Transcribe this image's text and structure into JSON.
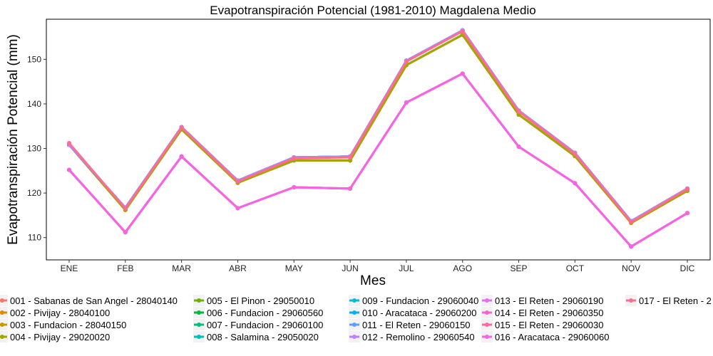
{
  "chart_data": {
    "type": "line",
    "title": "Evapotranspiración Potencial (1981-2010)  Magdalena Medio",
    "xlabel": "Mes",
    "ylabel": "Evapotranspiración Potencial  (mm)",
    "categories": [
      "ENE",
      "FEB",
      "MAR",
      "ABR",
      "MAY",
      "JUN",
      "JUL",
      "AGO",
      "SEP",
      "OCT",
      "NOV",
      "DIC"
    ],
    "ylim": [
      105,
      159
    ],
    "yticks": [
      110,
      120,
      130,
      140,
      150
    ],
    "grid": false,
    "legend_position": "bottom",
    "series": [
      {
        "name": "001 - Sabanas de San Angel - 28040140",
        "color": "#F8766D",
        "values": [
          130.8,
          116.2,
          134.3,
          122.3,
          127.3,
          127.3,
          148.7,
          155.5,
          137.6,
          128.3,
          113.3,
          120.5
        ]
      },
      {
        "name": "002 - Pivijay - 28040100",
        "color": "#E58700",
        "values": [
          130.8,
          116.2,
          134.3,
          122.3,
          127.3,
          127.3,
          148.7,
          155.5,
          137.6,
          128.3,
          113.3,
          120.5
        ]
      },
      {
        "name": "003 - Fundacion - 28040150",
        "color": "#C99800",
        "values": [
          130.8,
          116.2,
          134.3,
          122.3,
          127.3,
          127.3,
          148.7,
          155.5,
          137.6,
          128.3,
          113.3,
          120.5
        ]
      },
      {
        "name": "004 - Pivijay - 29020020",
        "color": "#A3A500",
        "values": [
          130.8,
          116.2,
          134.3,
          122.3,
          127.3,
          127.3,
          148.7,
          155.5,
          137.6,
          128.3,
          113.3,
          120.5
        ]
      },
      {
        "name": "005 - El Pinon - 29050010",
        "color": "#6BB100",
        "values": [
          130.8,
          116.7,
          134.8,
          122.8,
          128.0,
          128.2,
          149.7,
          156.5,
          138.5,
          129.0,
          113.7,
          121.0
        ]
      },
      {
        "name": "006 - Fundacion - 29060560",
        "color": "#00BA38",
        "values": [
          130.8,
          116.7,
          134.8,
          122.8,
          128.0,
          128.2,
          149.7,
          156.5,
          138.5,
          129.0,
          113.7,
          121.0
        ]
      },
      {
        "name": "007 - Fundacion - 29060100",
        "color": "#00BF7D",
        "values": [
          130.8,
          116.7,
          134.8,
          122.8,
          128.0,
          128.2,
          149.7,
          156.5,
          138.5,
          129.0,
          113.7,
          121.0
        ]
      },
      {
        "name": "008 - Salamina - 29050020",
        "color": "#00C0AF",
        "values": [
          130.8,
          116.7,
          134.8,
          122.8,
          128.0,
          128.2,
          149.7,
          156.5,
          138.5,
          129.0,
          113.7,
          121.0
        ]
      },
      {
        "name": "009 - Fundacion - 29060040",
        "color": "#00BCD8",
        "values": [
          130.8,
          116.7,
          134.8,
          122.8,
          128.0,
          128.2,
          149.7,
          156.5,
          138.5,
          129.0,
          113.7,
          121.0
        ]
      },
      {
        "name": "010 - Aracataca - 29060200",
        "color": "#00B0F6",
        "values": [
          130.8,
          116.7,
          134.8,
          122.8,
          128.0,
          128.2,
          149.7,
          156.5,
          138.5,
          129.0,
          113.7,
          121.0
        ]
      },
      {
        "name": "011 - El Reten - 29060150",
        "color": "#619CFF",
        "values": [
          130.8,
          116.7,
          134.8,
          122.8,
          128.0,
          128.2,
          149.7,
          156.5,
          138.5,
          129.0,
          113.7,
          121.0
        ]
      },
      {
        "name": "012 - Remolino - 29060540",
        "color": "#B983FF",
        "values": [
          130.8,
          116.7,
          134.8,
          122.8,
          128.0,
          128.2,
          149.7,
          156.5,
          138.5,
          129.0,
          113.7,
          121.0
        ]
      },
      {
        "name": "013 - El Reten - 29060190",
        "color": "#E76BF3",
        "values": [
          125.2,
          111.2,
          128.2,
          116.6,
          121.3,
          121.0,
          140.3,
          146.8,
          130.4,
          122.2,
          108.0,
          115.5
        ]
      },
      {
        "name": "014 - El Reten - 29060350",
        "color": "#FD61D1",
        "values": [
          125.2,
          111.2,
          128.2,
          116.6,
          121.3,
          121.0,
          140.3,
          146.8,
          130.4,
          122.2,
          108.0,
          115.5
        ]
      },
      {
        "name": "015 - El Reten - 29060030",
        "color": "#FF67A4",
        "values": [
          125.2,
          111.2,
          128.2,
          116.6,
          121.3,
          121.0,
          140.3,
          146.8,
          130.4,
          122.2,
          108.0,
          115.5
        ]
      },
      {
        "name": "016 - Aracataca - 29060060",
        "color": "#F564E3",
        "values": [
          125.2,
          111.2,
          128.2,
          116.6,
          121.3,
          121.0,
          140.3,
          146.8,
          130.4,
          122.2,
          108.0,
          115.5
        ]
      },
      {
        "name": "017 - El Reten - 2",
        "color": "#FF6C91",
        "values": [
          131.2,
          116.5,
          134.7,
          122.6,
          127.8,
          128.0,
          149.5,
          156.3,
          138.3,
          128.8,
          113.5,
          120.9
        ]
      }
    ]
  }
}
